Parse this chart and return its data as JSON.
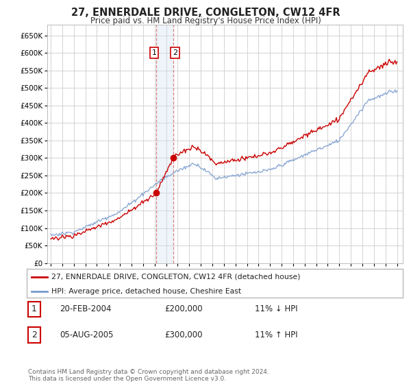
{
  "title": "27, ENNERDALE DRIVE, CONGLETON, CW12 4FR",
  "subtitle": "Price paid vs. HM Land Registry's House Price Index (HPI)",
  "legend_line1": "27, ENNERDALE DRIVE, CONGLETON, CW12 4FR (detached house)",
  "legend_line2": "HPI: Average price, detached house, Cheshire East",
  "sale1_label": "1",
  "sale1_date": "20-FEB-2004",
  "sale1_price": "£200,000",
  "sale1_hpi": "11% ↓ HPI",
  "sale2_label": "2",
  "sale2_date": "05-AUG-2005",
  "sale2_price": "£300,000",
  "sale2_hpi": "11% ↑ HPI",
  "footer": "Contains HM Land Registry data © Crown copyright and database right 2024.\nThis data is licensed under the Open Government Licence v3.0.",
  "hpi_color": "#7799cc",
  "price_color": "#cc0000",
  "sale_dot_color": "#cc0000",
  "vline_color": "#cc6666",
  "vspan_color": "#d0e0f0",
  "grid_color": "#cccccc",
  "background_color": "#ffffff",
  "ylim": [
    0,
    680000
  ],
  "yticks": [
    0,
    50000,
    100000,
    150000,
    200000,
    250000,
    300000,
    350000,
    400000,
    450000,
    500000,
    550000,
    600000,
    650000
  ],
  "sale1_year": 2004.12,
  "sale2_year": 2005.62,
  "sale1_price_val": 200000,
  "sale2_price_val": 300000,
  "hpi_scale": 1.11
}
